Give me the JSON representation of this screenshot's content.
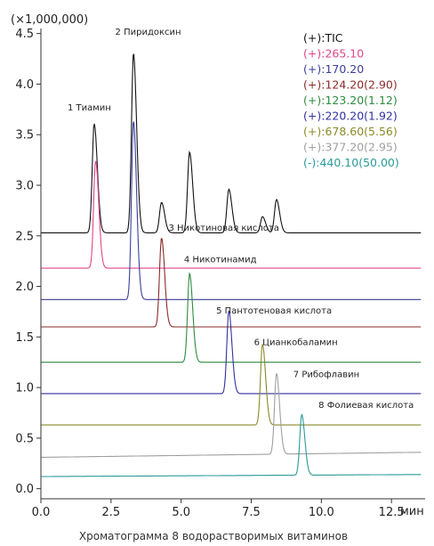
{
  "chart_data": {
    "type": "line",
    "y_multiplier_label": "(×1,000,000)",
    "xunit": "мин",
    "caption": "Хроматограмма 8 водорастворимых витаминов",
    "xlim": [
      0,
      13.7
    ],
    "ylim": [
      -0.1,
      4.55
    ],
    "xticks": [
      {
        "v": 0,
        "label": "0.0"
      },
      {
        "v": 2.5,
        "label": "2.5"
      },
      {
        "v": 5.0,
        "label": "5.0"
      },
      {
        "v": 7.5,
        "label": "7.5"
      },
      {
        "v": 10.0,
        "label": "10.0"
      },
      {
        "v": 12.5,
        "label": "12.5"
      }
    ],
    "yticks": [
      {
        "v": 0,
        "label": "0.0"
      },
      {
        "v": 0.5,
        "label": "0.5"
      },
      {
        "v": 1.0,
        "label": "1.0"
      },
      {
        "v": 1.5,
        "label": "1.5"
      },
      {
        "v": 2.0,
        "label": "2.0"
      },
      {
        "v": 2.5,
        "label": "2.5"
      },
      {
        "v": 3.0,
        "label": "3.0"
      },
      {
        "v": 3.5,
        "label": "3.5"
      },
      {
        "v": 4.0,
        "label": "4.0"
      },
      {
        "v": 4.5,
        "label": "4.5"
      }
    ],
    "series": [
      {
        "name": "(+):TIC",
        "color": "#111111",
        "baseline": 2.53,
        "peaks": [
          {
            "t": 1.9,
            "h": 1.08
          },
          {
            "t": 3.3,
            "h": 1.78
          },
          {
            "t": 4.3,
            "h": 0.3
          },
          {
            "t": 5.3,
            "h": 0.8
          },
          {
            "t": 6.7,
            "h": 0.43
          },
          {
            "t": 7.9,
            "h": 0.16
          },
          {
            "t": 8.4,
            "h": 0.33
          }
        ],
        "end": 2.53
      },
      {
        "name": "(+):265.10",
        "color": "#e0458a",
        "baseline": 2.18,
        "peaks": [
          {
            "t": 1.95,
            "h": 1.06
          }
        ],
        "end": 2.18
      },
      {
        "name": "(+):170.20",
        "color": "#3a3f9e",
        "baseline": 1.87,
        "peaks": [
          {
            "t": 3.3,
            "h": 1.77
          }
        ],
        "end": 1.87
      },
      {
        "name": "(+):124.20(2.90)",
        "color": "#8b2a2a",
        "baseline": 1.6,
        "peaks": [
          {
            "t": 4.3,
            "h": 0.88
          }
        ],
        "end": 1.6
      },
      {
        "name": "(+):123.20(1.12)",
        "color": "#2e8b3e",
        "baseline": 1.25,
        "peaks": [
          {
            "t": 5.3,
            "h": 0.88
          }
        ],
        "end": 1.25
      },
      {
        "name": "(+):220.20(1.92)",
        "color": "#3030a0",
        "baseline": 0.94,
        "peaks": [
          {
            "t": 6.7,
            "h": 0.82
          }
        ],
        "end": 0.94
      },
      {
        "name": "(+):678.60(5.56)",
        "color": "#8a8a2a",
        "baseline": 0.63,
        "peaks": [
          {
            "t": 7.9,
            "h": 0.8
          }
        ],
        "end": 0.63
      },
      {
        "name": "(+):377.20(2.95)",
        "color": "#a0a0a0",
        "baseline": 0.31,
        "peaks": [
          {
            "t": 8.4,
            "h": 0.8
          }
        ],
        "end": 0.36
      },
      {
        "name": "(-):440.10(50.00)",
        "color": "#2a9a9a",
        "baseline": 0.12,
        "peaks": [
          {
            "t": 9.3,
            "h": 0.6
          }
        ],
        "end": 0.14
      }
    ],
    "annotations": [
      {
        "text": "1  Тиамин",
        "x": 0.95,
        "y": 3.74
      },
      {
        "text": "2  Пиридоксин",
        "x": 2.65,
        "y": 4.49
      },
      {
        "text": "3  Никотиновая кислота",
        "x": 4.55,
        "y": 2.55
      },
      {
        "text": "4  Никотинамид",
        "x": 5.1,
        "y": 2.24
      },
      {
        "text": "5  Пантотеновая кислота",
        "x": 6.25,
        "y": 1.73
      },
      {
        "text": "6  Цианкобаламин",
        "x": 7.6,
        "y": 1.42
      },
      {
        "text": "7  Рибофлавин",
        "x": 9.0,
        "y": 1.1
      },
      {
        "text": "8  Фолиевая кислота",
        "x": 9.9,
        "y": 0.8
      }
    ]
  }
}
